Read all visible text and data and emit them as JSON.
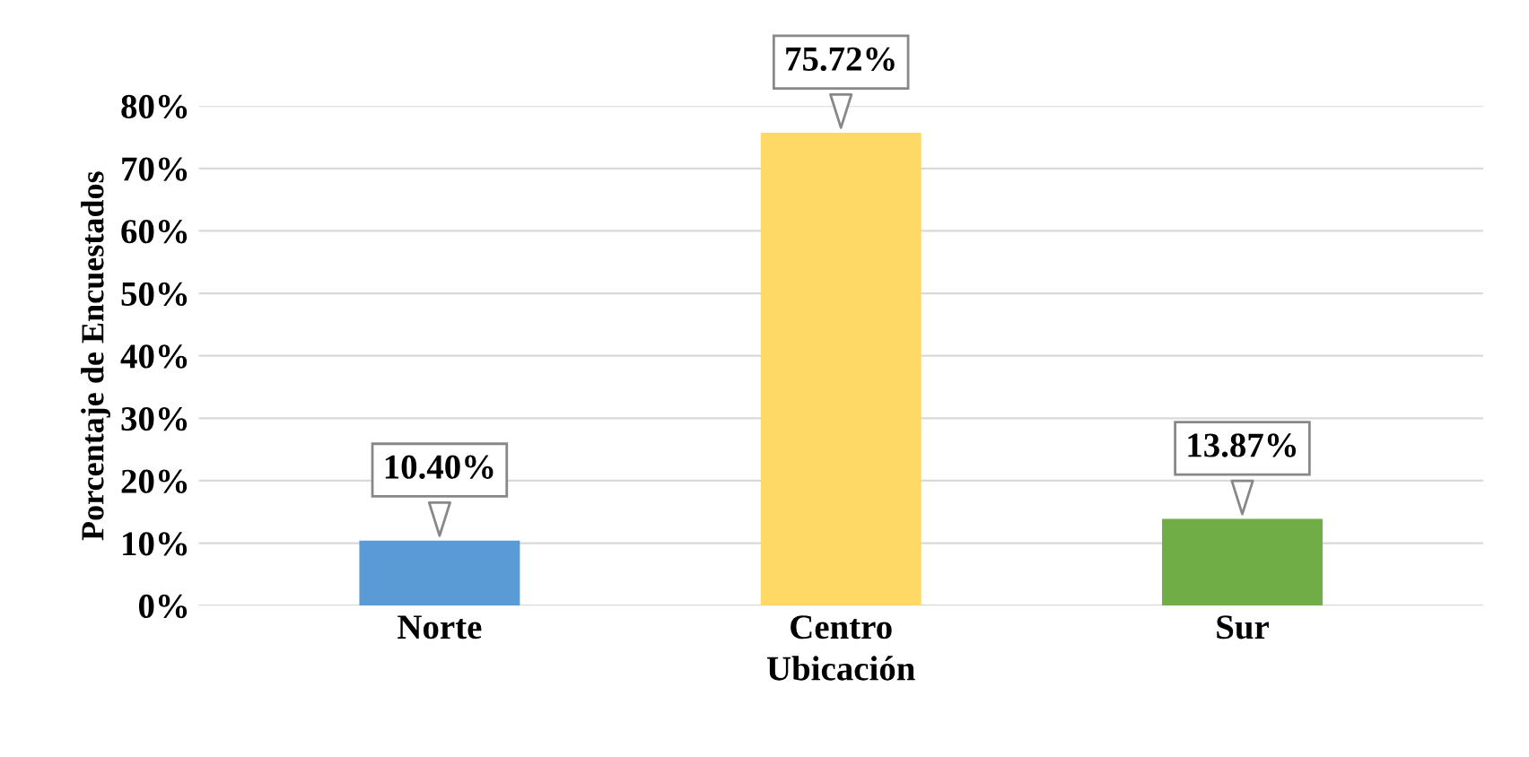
{
  "chart_data": {
    "type": "bar",
    "xlabel": "Ubicación",
    "ylabel": "Porcentaje de Encuestados",
    "categories": [
      "Norte",
      "Centro",
      "Sur"
    ],
    "values": [
      10.4,
      75.72,
      13.87
    ],
    "colors": [
      "#5b9bd5",
      "#ffd966",
      "#70ad47"
    ],
    "value_labels": [
      "10.40%",
      "75.72%",
      "13.87%"
    ],
    "ylim": [
      0,
      80
    ],
    "yticks": [
      {
        "value": 0,
        "label": "0%"
      },
      {
        "value": 10,
        "label": "10%"
      },
      {
        "value": 20,
        "label": "20%"
      },
      {
        "value": 30,
        "label": "30%"
      },
      {
        "value": 40,
        "label": "40%"
      },
      {
        "value": 50,
        "label": "50%"
      },
      {
        "value": 60,
        "label": "60%"
      },
      {
        "value": 70,
        "label": "70%"
      },
      {
        "value": 80,
        "label": "80%"
      }
    ],
    "grid": "y"
  }
}
